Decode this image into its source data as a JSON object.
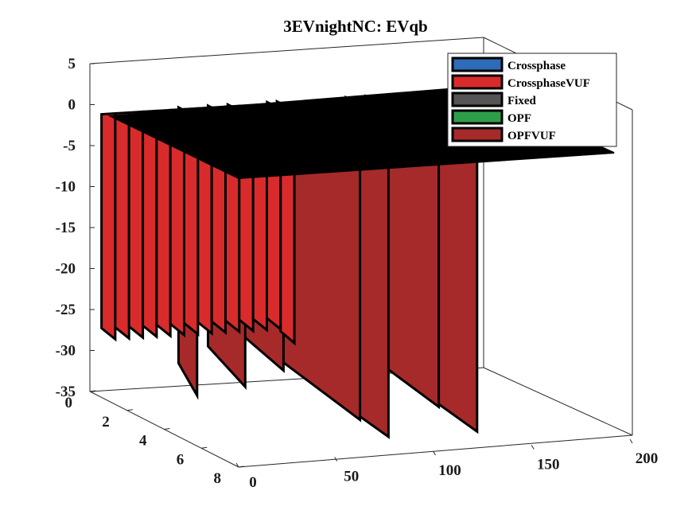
{
  "chart_data": {
    "type": "3d-waterfall",
    "title": "3EVnightNC: EVqb",
    "xlabel": "",
    "ylabel": "",
    "zlabel": "",
    "xlim": [
      0,
      200
    ],
    "ylim": [
      0,
      8
    ],
    "zlim": [
      -35,
      5
    ],
    "x_ticks": [
      "0",
      "50",
      "100",
      "150",
      "200"
    ],
    "y_ticks": [
      "0",
      "2",
      "4",
      "6",
      "8"
    ],
    "z_ticks": [
      "5",
      "0",
      "-5",
      "-10",
      "-15",
      "-20",
      "-25",
      "-30",
      "-35"
    ],
    "grid": false,
    "legend_position": "top-right",
    "series": [
      {
        "name": "Crossphase",
        "color": "#2E6BB8"
      },
      {
        "name": "CrossphaseVUF",
        "color": "#D92B2B"
      },
      {
        "name": "Fixed",
        "color": "#555555"
      },
      {
        "name": "OPF",
        "color": "#2E9E4A"
      },
      {
        "name": "OPFVUF",
        "color": "#A62A2A"
      }
    ],
    "top_surface_value": -1,
    "drops": [
      {
        "x": 45,
        "y_from": 0,
        "y_to": 1,
        "value": -35
      },
      {
        "x": 60,
        "y_from": 0,
        "y_to": 2,
        "value": -33
      },
      {
        "x": 70,
        "y_from": 0,
        "y_to": 3,
        "value": -30
      },
      {
        "x": 90,
        "y_from": 0,
        "y_to": 5,
        "value": -34
      },
      {
        "x": 95,
        "y_from": 0,
        "y_to": 6,
        "value": -35
      },
      {
        "x": 130,
        "y_from": 0,
        "y_to": 5,
        "value": -33
      },
      {
        "x": 140,
        "y_from": 0,
        "y_to": 6,
        "value": -35
      }
    ]
  }
}
